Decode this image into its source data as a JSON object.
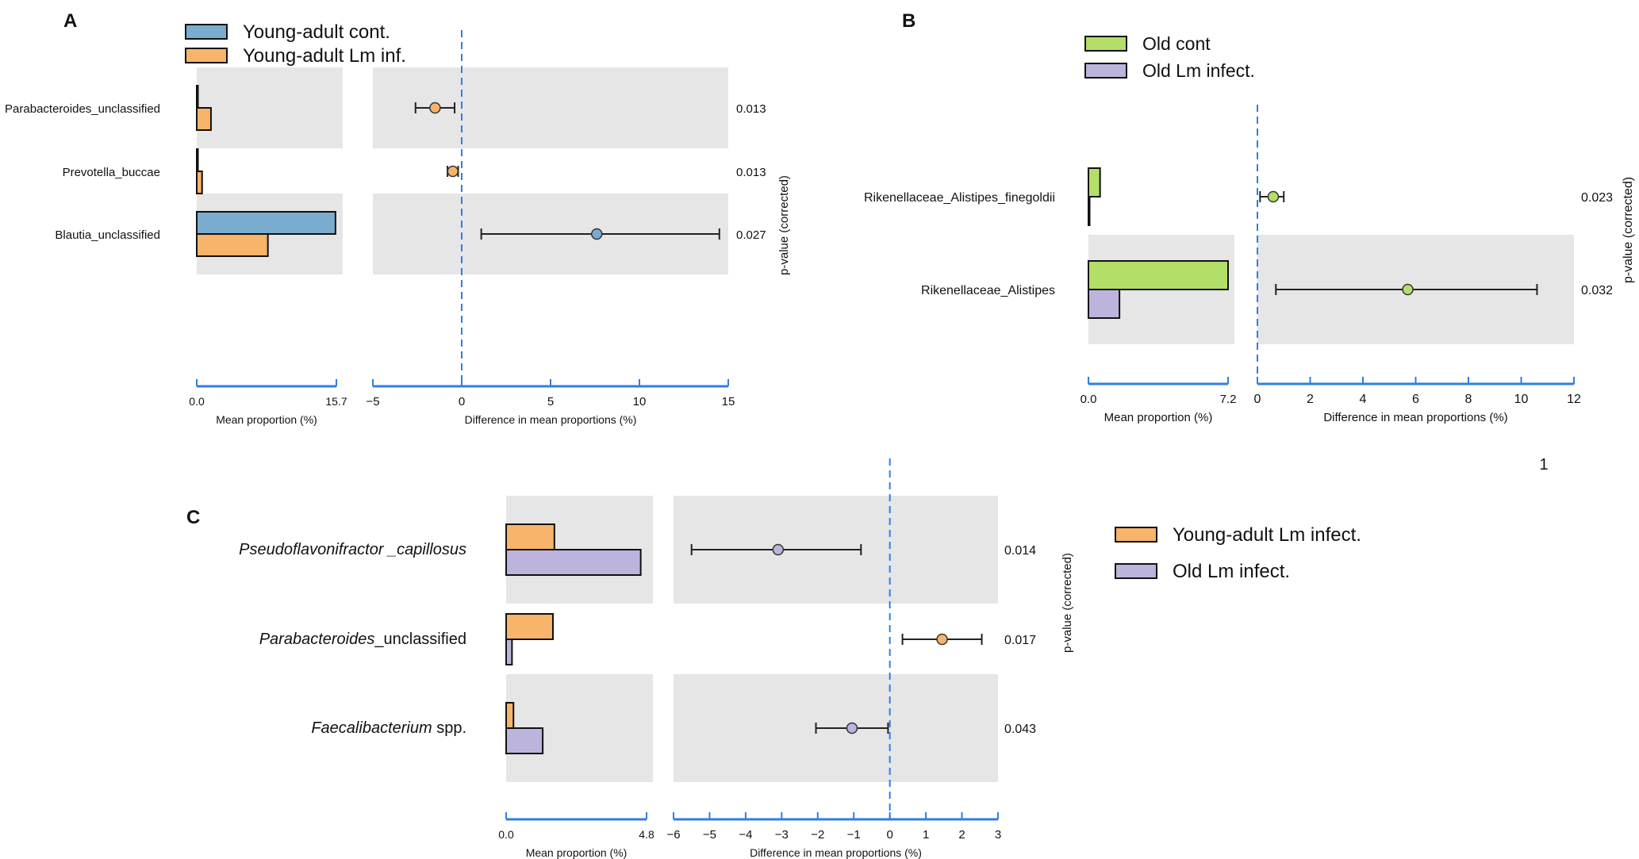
{
  "colors": {
    "young_cont": "#7aacd0",
    "young_inf": "#f7b46a",
    "old_cont": "#b3de68",
    "old_inf": "#bcb4dc",
    "axis_blue": "#2f7ee6",
    "panel_grey": "#e6e6e6"
  },
  "chart_data": [
    {
      "panel": "A",
      "type": "bar",
      "legend": [
        "Young-adult  cont.",
        "Young-adult  Lm inf."
      ],
      "categories": [
        "Parabacteroides_unclassified",
        "Prevotella_buccae",
        "Blautia_unclassified"
      ],
      "series": [
        {
          "name": "Young-adult  cont.",
          "values": [
            0.05,
            0.05,
            15.6
          ]
        },
        {
          "name": "Young-adult  Lm inf.",
          "values": [
            1.6,
            0.6,
            8.0
          ]
        }
      ],
      "xlabel": "Mean proportion (%)",
      "xlim": [
        0,
        15.7
      ],
      "xticks": [
        "0.0",
        "15.7"
      ],
      "diff": {
        "xlabel": "Difference in mean proportions (%)",
        "xlim": [
          -5,
          15
        ],
        "xticks": [
          "−5",
          "0",
          "5",
          "10",
          "15"
        ],
        "points": [
          {
            "value": -1.5,
            "ci": [
              -2.6,
              -0.4
            ],
            "winner": "Young-adult  Lm inf."
          },
          {
            "value": -0.5,
            "ci": [
              -0.8,
              -0.2
            ],
            "winner": "Young-adult  Lm inf."
          },
          {
            "value": 7.6,
            "ci": [
              1.1,
              14.5
            ],
            "winner": "Young-adult  cont."
          }
        ]
      },
      "pvalues": [
        "0.013",
        "0.013",
        "0.027"
      ],
      "pvalue_label": "p-value (corrected)"
    },
    {
      "panel": "B",
      "type": "bar",
      "legend": [
        "Old cont",
        "Old Lm infect."
      ],
      "categories": [
        "Rikenellaceae_Alistipes_finegoldii",
        "Rikenellaceae_Alistipes"
      ],
      "series": [
        {
          "name": "Old cont",
          "values": [
            0.6,
            7.2
          ]
        },
        {
          "name": "Old Lm infect.",
          "values": [
            0.05,
            1.6
          ]
        }
      ],
      "xlabel": "Mean proportion (%)",
      "xlim": [
        0,
        7.2
      ],
      "xticks": [
        "0.0",
        "7.2"
      ],
      "diff": {
        "xlabel": "Difference in mean proportions (%)",
        "xlim": [
          0,
          12
        ],
        "xticks": [
          "0",
          "2",
          "4",
          "6",
          "8",
          "10",
          "12"
        ],
        "points": [
          {
            "value": 0.6,
            "ci": [
              0.1,
              1.0
            ],
            "winner": "Old cont"
          },
          {
            "value": 5.7,
            "ci": [
              0.7,
              10.6
            ],
            "winner": "Old cont"
          }
        ]
      },
      "pvalues": [
        "0.023",
        "0.032"
      ],
      "pvalue_label": "p-value (corrected)",
      "page_number": "1"
    },
    {
      "panel": "C",
      "type": "bar",
      "legend": [
        "Young-adult  Lm infect.",
        "Old Lm infect."
      ],
      "categories": [
        {
          "italic": "Pseudoflavonifractor _capillosus",
          "plain": ""
        },
        {
          "italic": "Parabacteroides",
          "plain": "_unclassified"
        },
        {
          "italic": "Faecalibacterium",
          "plain": " spp."
        }
      ],
      "series": [
        {
          "name": "Young-adult  Lm infect.",
          "values": [
            1.65,
            1.6,
            0.25
          ]
        },
        {
          "name": "Old Lm infect.",
          "values": [
            4.6,
            0.2,
            1.25
          ]
        }
      ],
      "xlabel": "Mean proportion (%)",
      "xlim": [
        0,
        4.8
      ],
      "xticks": [
        "0.0",
        "4.8"
      ],
      "diff": {
        "xlabel": "Difference in mean proportions (%)",
        "xlim": [
          -6,
          3
        ],
        "xticks": [
          "−6",
          "−5",
          "−4",
          "−3",
          "−2",
          "−1",
          "0",
          "1",
          "2",
          "3"
        ],
        "points": [
          {
            "value": -3.1,
            "ci": [
              -5.5,
              -0.8
            ],
            "winner": "Old Lm infect."
          },
          {
            "value": 1.45,
            "ci": [
              0.35,
              2.55
            ],
            "winner": "Young-adult  Lm infect."
          },
          {
            "value": -1.05,
            "ci": [
              -2.05,
              -0.05
            ],
            "winner": "Old Lm infect."
          }
        ]
      },
      "pvalues": [
        "0.014",
        "0.017",
        "0.043"
      ],
      "pvalue_label": "p-value (corrected)"
    }
  ]
}
